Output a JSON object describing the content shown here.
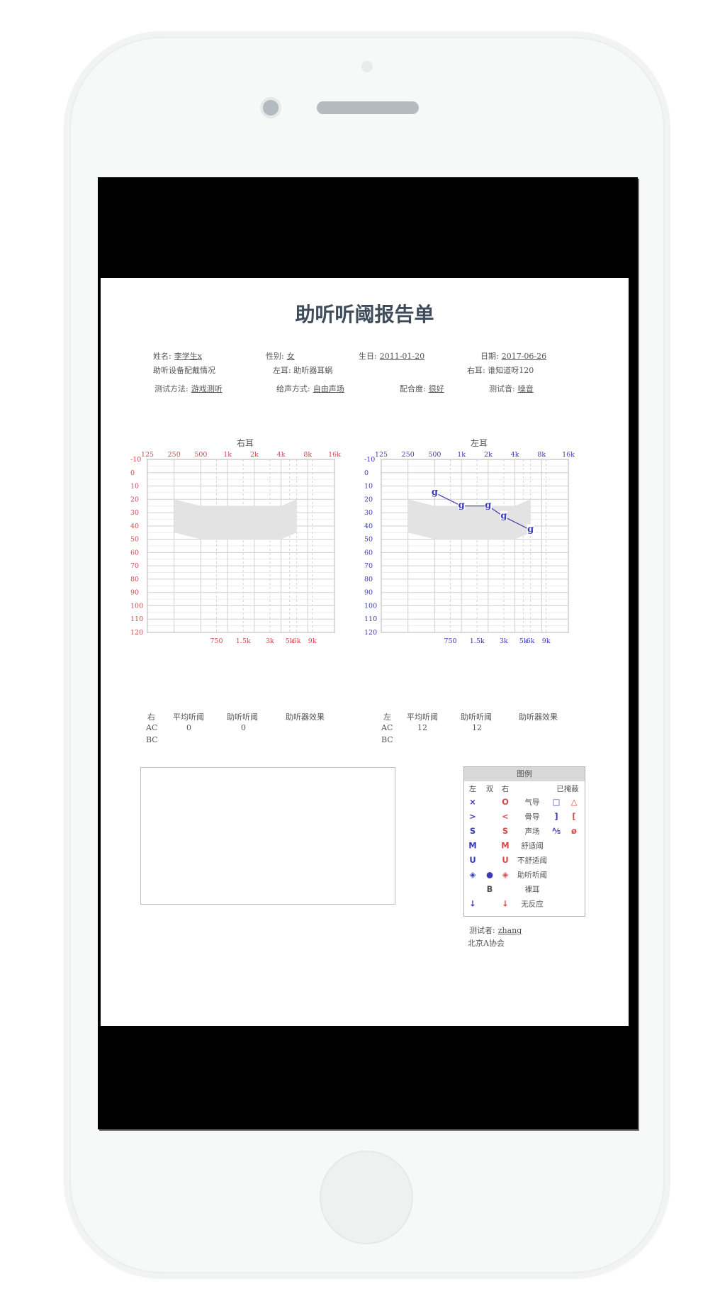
{
  "report": {
    "title": "助听听阈报告单",
    "name_label": "姓名:",
    "name_value": "李学生x",
    "gender_label": "性别:",
    "gender_value": "女",
    "birth_label": "生日:",
    "birth_value": "2011-01-20",
    "date_label": "日期:",
    "date_value": "2017-06-26",
    "fitting_label": "助听设备配戴情况",
    "left_ear_device": "左耳: 助听器耳蜗",
    "right_ear_device": "右耳: 谁知道呀120",
    "method_label": "测试方法:",
    "method_value": "游戏测听",
    "sound_mode_label": "给声方式:",
    "sound_mode_value": "自由声场",
    "cooperation_label": "配合度:",
    "cooperation_value": "很好",
    "test_sound_label": "测试音:",
    "test_sound_value": "噪音"
  },
  "audiograms": {
    "right_title": "右耳",
    "left_title": "左耳",
    "top_freqs": [
      "125",
      "250",
      "500",
      "1k",
      "2k",
      "4k",
      "8k",
      "16k"
    ],
    "bottom_freqs": [
      "750",
      "1.5k",
      "3k",
      "5k",
      "6k",
      "9k"
    ],
    "db_labels": [
      "-10",
      "0",
      "10",
      "20",
      "30",
      "40",
      "50",
      "60",
      "70",
      "80",
      "90",
      "100",
      "110",
      "120"
    ],
    "right_color": "#d24a4a",
    "left_color": "#3b3bb8"
  },
  "chart_data": [
    {
      "type": "line",
      "title": "右耳",
      "xlabel": "",
      "ylabel": "",
      "x_scale": "log",
      "x_ticks": [
        "125",
        "250",
        "500",
        "1k",
        "2k",
        "4k",
        "8k",
        "16k"
      ],
      "ylim": [
        -10,
        120
      ],
      "y_inverted": true,
      "grid": true,
      "speech_banana": [
        [
          250,
          20
        ],
        [
          500,
          25
        ],
        [
          1000,
          25
        ],
        [
          2000,
          25
        ],
        [
          4000,
          25
        ],
        [
          6000,
          20
        ],
        [
          6000,
          45
        ],
        [
          4000,
          50
        ],
        [
          2000,
          50
        ],
        [
          1000,
          50
        ],
        [
          500,
          50
        ],
        [
          250,
          45
        ]
      ],
      "series": []
    },
    {
      "type": "line",
      "title": "左耳",
      "xlabel": "",
      "ylabel": "",
      "x_scale": "log",
      "x_ticks": [
        "125",
        "250",
        "500",
        "1k",
        "2k",
        "4k",
        "8k",
        "16k"
      ],
      "ylim": [
        -10,
        120
      ],
      "y_inverted": true,
      "grid": true,
      "speech_banana": [
        [
          250,
          20
        ],
        [
          500,
          25
        ],
        [
          1000,
          25
        ],
        [
          2000,
          25
        ],
        [
          4000,
          25
        ],
        [
          6000,
          20
        ],
        [
          6000,
          45
        ],
        [
          4000,
          50
        ],
        [
          2000,
          50
        ],
        [
          1000,
          50
        ],
        [
          500,
          50
        ],
        [
          250,
          45
        ]
      ],
      "series": [
        {
          "marker": "g",
          "color": "#3b3bb8",
          "points": [
            [
              500,
              15
            ],
            [
              1000,
              25
            ],
            [
              2000,
              25
            ],
            [
              3000,
              33
            ],
            [
              6000,
              43
            ]
          ]
        }
      ]
    }
  ],
  "stats": {
    "right": {
      "ear": "右",
      "avg_label": "平均听阈",
      "aided_label": "助听听阈",
      "effect_label": "助听器效果",
      "ac_label": "AC",
      "bc_label": "BC",
      "ac_avg": "0",
      "ac_aided": "0"
    },
    "left": {
      "ear": "左",
      "avg_label": "平均听阈",
      "aided_label": "助听听阈",
      "effect_label": "助听器效果",
      "ac_label": "AC",
      "bc_label": "BC",
      "ac_avg": "12",
      "ac_aided": "12"
    }
  },
  "legend": {
    "title": "图例",
    "col_left": "左",
    "col_both": "双",
    "col_right": "右",
    "col_masked": "已掩蔽",
    "rows": [
      {
        "left": "×",
        "both": "",
        "right": "O",
        "label": "气导",
        "mask_l": "□",
        "mask_r": "△"
      },
      {
        "left": ">",
        "both": "",
        "right": "<",
        "label": "骨导",
        "mask_l": "]",
        "mask_r": "["
      },
      {
        "left": "S",
        "both": "",
        "right": "S",
        "label": "声场",
        "mask_l": "⅍",
        "mask_r": "ø"
      },
      {
        "left": "M",
        "both": "",
        "right": "M",
        "label": "舒适阈",
        "mask_l": "",
        "mask_r": ""
      },
      {
        "left": "U",
        "both": "",
        "right": "U",
        "label": "不舒适阈",
        "mask_l": "",
        "mask_r": ""
      },
      {
        "left": "◈",
        "both": "●",
        "right": "◈",
        "label": "助听听阈",
        "mask_l": "",
        "mask_r": ""
      },
      {
        "left": "",
        "both": "B",
        "right": "",
        "label": "裸耳",
        "mask_l": "",
        "mask_r": ""
      },
      {
        "left": "↓",
        "both": "",
        "right": "↓",
        "label": "无反应",
        "mask_l": "",
        "mask_r": ""
      }
    ]
  },
  "footer": {
    "tester_label": "测试者:",
    "tester_value": "zhang",
    "org": "北京A协会"
  }
}
